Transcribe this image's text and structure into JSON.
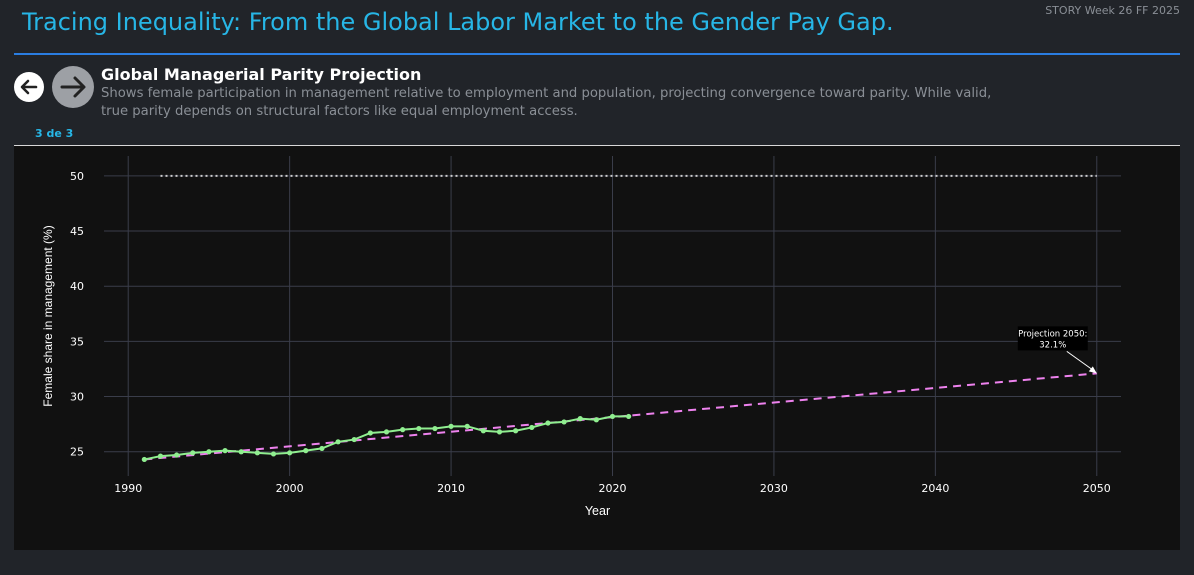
{
  "header": {
    "title": "Tracing Inequality: From the Global Labor Market to the Gender Pay Gap.",
    "note": "STORY Week 26 FF 2025"
  },
  "slide": {
    "title": "Global Managerial Parity Projection",
    "description": "Shows female participation in management relative to employment and population, projecting convergence toward parity. While valid, true parity depends on structural factors like equal employment access.",
    "pager": "3 de 3",
    "icons": {
      "back": "arrow-left-icon",
      "next": "arrow-right-icon"
    }
  },
  "colors": {
    "title": "#27b6e6",
    "series": "#90ee90",
    "projection": "#ee82ee",
    "parity": "#cccccc",
    "grid": "#3a3d4a",
    "axis_text": "#ffffff"
  },
  "chart_data": {
    "type": "line",
    "xlabel": "Year",
    "ylabel": "Female share in management (%)",
    "xlim": [
      1988.5,
      2051.5
    ],
    "ylim": [
      22.8,
      51.8
    ],
    "x_ticks": [
      1990,
      2000,
      2010,
      2020,
      2030,
      2040,
      2050
    ],
    "y_ticks": [
      25,
      30,
      35,
      40,
      45,
      50
    ],
    "grid": true,
    "series": [
      {
        "style": "line+markers",
        "x": [
          1991,
          1992,
          1993,
          1994,
          1995,
          1996,
          1997,
          1998,
          1999,
          2000,
          2001,
          2002,
          2003,
          2004,
          2005,
          2006,
          2007,
          2008,
          2009,
          2010,
          2011,
          2012,
          2013,
          2014,
          2015,
          2016,
          2017,
          2018,
          2019,
          2020,
          2021
        ],
        "y": [
          24.3,
          24.6,
          24.7,
          24.9,
          25.0,
          25.1,
          25.0,
          24.9,
          24.8,
          24.9,
          25.1,
          25.3,
          25.9,
          26.1,
          26.7,
          26.8,
          27.0,
          27.1,
          27.1,
          27.3,
          27.3,
          26.9,
          26.8,
          26.9,
          27.2,
          27.6,
          27.7,
          28.0,
          27.9,
          28.2,
          28.2
        ]
      },
      {
        "style": "dashed",
        "x": [
          1991,
          2050
        ],
        "y": [
          24.3,
          32.1
        ]
      },
      {
        "style": "dotted",
        "x": [
          1992,
          2050
        ],
        "y": [
          50,
          50
        ]
      }
    ],
    "annotation": {
      "line1": "Projection 2050:",
      "line2": "32.1%",
      "x": 2050,
      "y": 32.1
    }
  }
}
